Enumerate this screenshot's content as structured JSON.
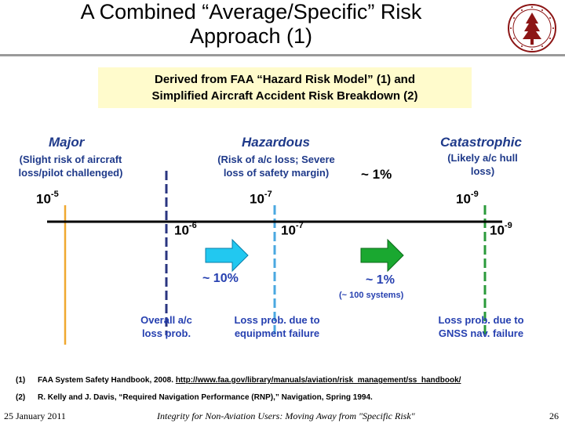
{
  "title": {
    "line1": "A Combined “Average/Specific” Risk",
    "line2": "Approach (1)"
  },
  "callout": {
    "line1": "Derived from FAA “Hazard Risk Model” (1) and",
    "line2": "Simplified Aircraft Accident Risk Breakdown (2)"
  },
  "severity": {
    "major": {
      "label": "Major",
      "desc1": "(Slight risk of aircraft",
      "desc2": "loss/pilot challenged)"
    },
    "hazardous": {
      "label": "Hazardous",
      "desc1": "(Risk of a/c loss; Severe",
      "desc2": "loss of safety margin)"
    },
    "catastrophic": {
      "label": "Catastrophic",
      "desc1": "(Likely a/c hull",
      "desc2": "loss)"
    },
    "approx": "~ 1%"
  },
  "upper_scale": {
    "major": {
      "base": "10",
      "exp": "-5"
    },
    "hazardous": {
      "base": "10",
      "exp": "-7"
    },
    "catastrophic": {
      "base": "10",
      "exp": "-9"
    }
  },
  "lower_scale": {
    "overall": {
      "base": "10",
      "exp": "-6"
    },
    "equipment": {
      "base": "10",
      "exp": "-7"
    },
    "gnss": {
      "base": "10",
      "exp": "-9"
    }
  },
  "fractions": {
    "first": "~ 10%",
    "second": "~ 1%",
    "second_note": "(~ 100 systems)"
  },
  "captions": {
    "overall1": "Overall a/c",
    "overall2": "loss prob.",
    "equipment1": "Loss prob. due to",
    "equipment2": "equipment failure",
    "gnss1": "Loss prob. due to",
    "gnss2": "GNSS nav. failure"
  },
  "references": {
    "r1_num": "(1)",
    "r1_text": "FAA System Safety Handbook, 2008.",
    "r1_link": "http://www.faa.gov/library/manuals/aviation/risk_management/ss_handbook/",
    "r2_num": "(2)",
    "r2_text": "R. Kelly and J. Davis, “Required Navigation Performance (RNP),” Navigation, Spring 1994."
  },
  "footer": {
    "date": "25 January 2011",
    "subtitle": "Integrity for Non-Aviation Users: Moving Away from \"Specific Risk\"",
    "page": "26"
  },
  "colors": {
    "title_rule": "#9a9a9a",
    "callout_bg": "#fffbcc",
    "blue_text": "#1f3a8a",
    "link_blue": "#2640b0",
    "major_line": "#f0a830",
    "dashed_navy": "#2a3580",
    "dashed_lightblue": "#4aa8e0",
    "dashed_green": "#2a9a3a",
    "arrow_cyan": "#22c8f0",
    "arrow_green": "#1aa830",
    "seal": "#8c1515"
  }
}
